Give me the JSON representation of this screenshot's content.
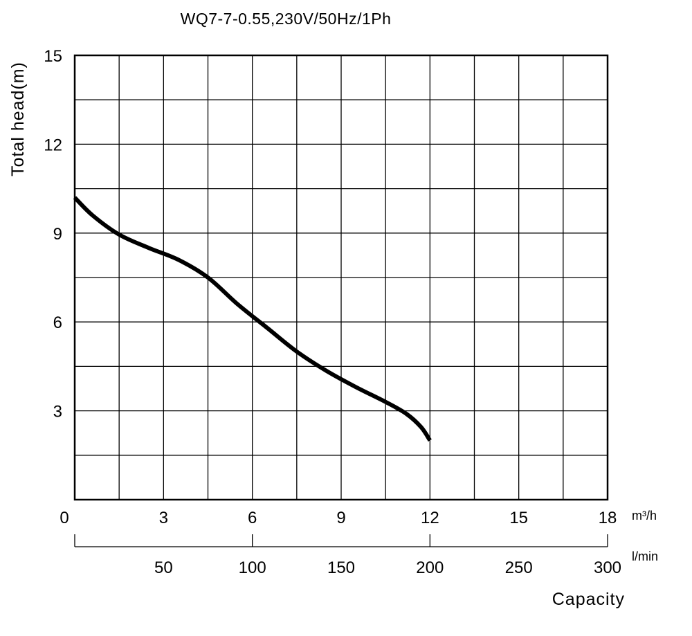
{
  "chart_data": {
    "type": "line",
    "title": "WQ7-7-0.55,230V/50Hz/1Ph",
    "ylabel": "Total head(m)",
    "xlabel": "Capacity",
    "x_unit_primary": "m³/h",
    "x_unit_secondary": "l/min",
    "ylim": [
      0,
      15
    ],
    "xlim": [
      0,
      18
    ],
    "y_ticks": [
      "15",
      "12",
      "9",
      "6",
      "3"
    ],
    "x_ticks_primary": [
      "0",
      "3",
      "6",
      "9",
      "12",
      "15",
      "18"
    ],
    "x_ticks_secondary": [
      "50",
      "100",
      "150",
      "200",
      "250",
      "300"
    ],
    "grid": true,
    "series": [
      {
        "x": [
          0,
          0.6,
          1.5,
          2.5,
          3.5,
          4.5,
          5.5,
          6.5,
          7.5,
          8.5,
          9.5,
          10.5,
          11.2,
          11.7,
          12
        ],
        "y": [
          10.2,
          9.6,
          8.95,
          8.5,
          8.1,
          7.5,
          6.6,
          5.8,
          5.0,
          4.35,
          3.8,
          3.3,
          2.9,
          2.45,
          2.0
        ]
      }
    ]
  }
}
